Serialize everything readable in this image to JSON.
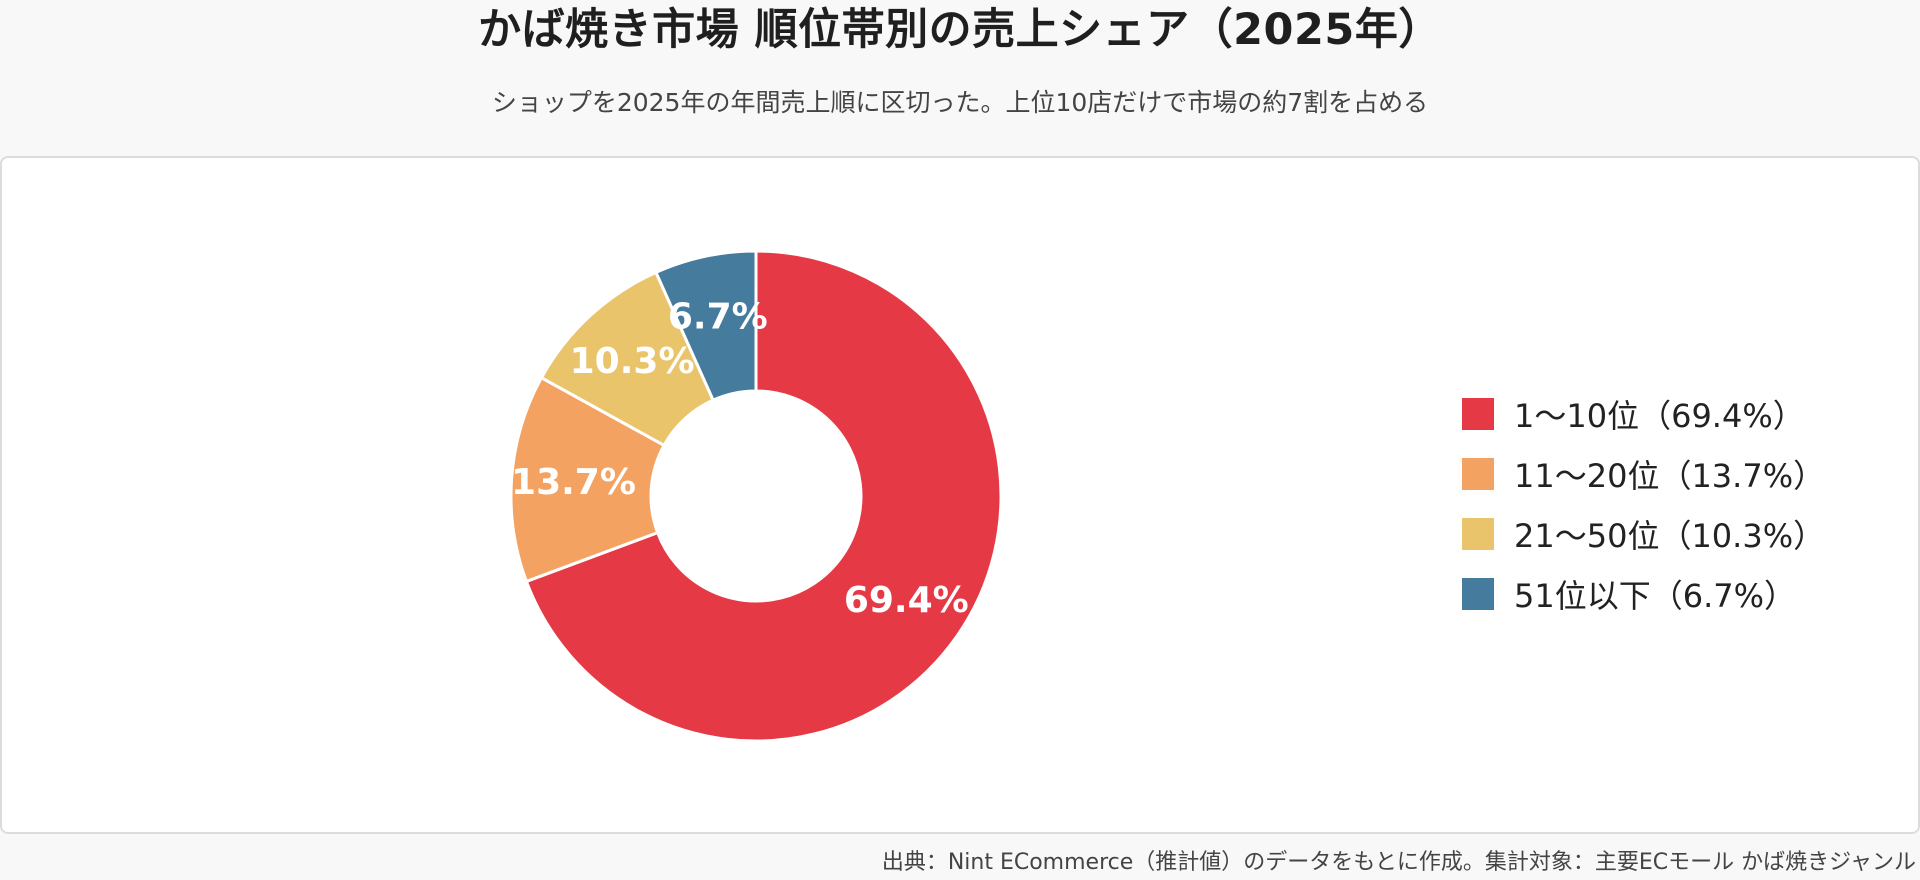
{
  "title": "かば焼き市場 順位帯別の売上シェア（2025年）",
  "subtitle": "ショップを2025年の年間売上順に区切った。上位10店だけで市場の約7割を占める",
  "source": "出典：Nint ECommerce（推計値）のデータをもとに作成。集計対象：主要ECモール かば焼きジャンル",
  "chart_data": {
    "type": "pie",
    "donut": true,
    "legend_position": "right",
    "categories": [
      "1〜10位",
      "11〜20位",
      "21〜50位",
      "51位以下"
    ],
    "values": [
      69.4,
      13.7,
      10.3,
      6.7
    ],
    "unit": "%",
    "slice_labels": [
      "69.4%",
      "13.7%",
      "10.3%",
      "6.7%"
    ],
    "legend_labels": [
      "1〜10位（69.4%）",
      "11〜20位（13.7%）",
      "21〜50位（10.3%）",
      "51位以下（6.7%）"
    ],
    "colors": [
      "#e63946",
      "#f4a261",
      "#e9c46a",
      "#457b9d"
    ]
  }
}
